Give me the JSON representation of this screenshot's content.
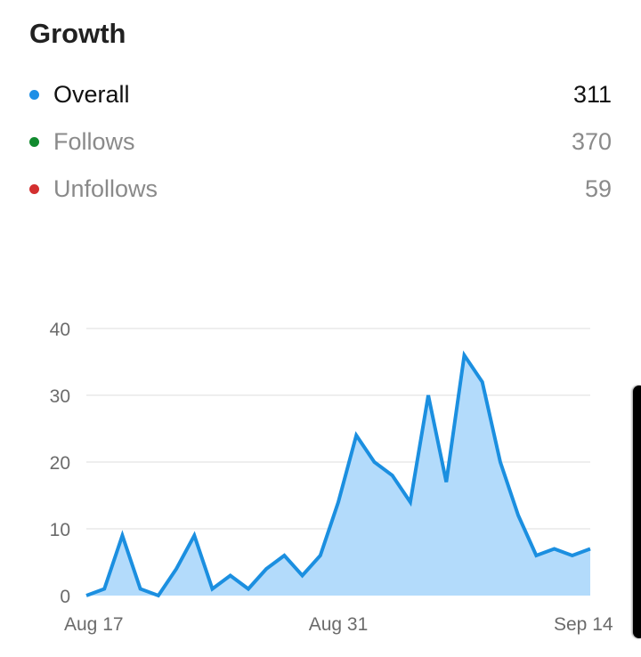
{
  "header": {
    "title": "Growth"
  },
  "legend": [
    {
      "label": "Overall",
      "value": "311",
      "color": "#1e8fe6",
      "active": true
    },
    {
      "label": "Follows",
      "value": "370",
      "color": "#118a2e",
      "active": false
    },
    {
      "label": "Unfollows",
      "value": "59",
      "color": "#d32f2f",
      "active": false
    }
  ],
  "colors": {
    "line": "#1b8fe0",
    "fill": "#b3dbfb",
    "grid": "#dcdcdc",
    "axis_text": "#6b6b6b"
  },
  "chart_data": {
    "type": "area",
    "title": "Growth",
    "series": [
      {
        "name": "Overall",
        "values": [
          0,
          1,
          9,
          1,
          0,
          4,
          9,
          1,
          3,
          1,
          4,
          6,
          3,
          6,
          14,
          24,
          20,
          18,
          14,
          30,
          17,
          36,
          32,
          20,
          12,
          6,
          7,
          6,
          7
        ]
      }
    ],
    "x": [
      "Aug 17",
      "Aug 18",
      "Aug 19",
      "Aug 20",
      "Aug 21",
      "Aug 22",
      "Aug 23",
      "Aug 24",
      "Aug 25",
      "Aug 26",
      "Aug 27",
      "Aug 28",
      "Aug 29",
      "Aug 30",
      "Aug 31",
      "Sep 1",
      "Sep 2",
      "Sep 3",
      "Sep 4",
      "Sep 5",
      "Sep 6",
      "Sep 7",
      "Sep 8",
      "Sep 9",
      "Sep 10",
      "Sep 11",
      "Sep 12",
      "Sep 13",
      "Sep 14"
    ],
    "x_tick_labels": [
      "Aug 17",
      "Aug 31",
      "Sep 14"
    ],
    "y_ticks": [
      "0",
      "10",
      "20",
      "30",
      "40"
    ],
    "ylim": [
      0,
      40
    ],
    "xlabel": "",
    "ylabel": "",
    "grid": true,
    "legend_position": "top"
  }
}
